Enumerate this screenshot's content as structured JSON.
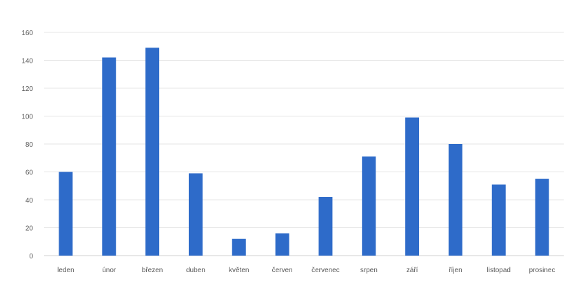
{
  "chart_data": {
    "type": "bar",
    "categories": [
      "leden",
      "únor",
      "březen",
      "duben",
      "květen",
      "červen",
      "červenec",
      "srpen",
      "září",
      "říjen",
      "listopad",
      "prosinec"
    ],
    "values": [
      60,
      142,
      149,
      59,
      12,
      16,
      42,
      71,
      99,
      80,
      51,
      55
    ],
    "title": "",
    "xlabel": "",
    "ylabel": "",
    "ylim": [
      0,
      160
    ],
    "yticks": [
      0,
      20,
      40,
      60,
      80,
      100,
      120,
      140,
      160
    ],
    "grid": true,
    "legend": "none",
    "bar_color": "#2e6bc9"
  }
}
